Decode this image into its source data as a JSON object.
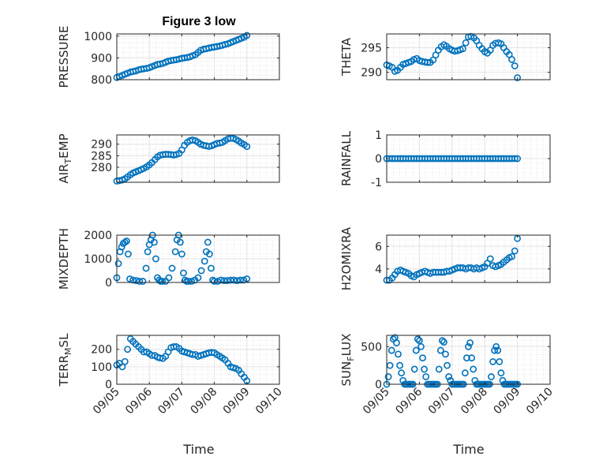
{
  "figure": {
    "title": "Figure 3 low",
    "xlabel": "Time",
    "marker_color": "#0072bd"
  },
  "chart_data": [
    {
      "type": "scatter",
      "name": "pressure",
      "ylabel": "PRESSURE",
      "xlim": [
        "09/05",
        "09/10"
      ],
      "ylim": [
        800,
        1010
      ],
      "yticks": [
        "800",
        "900",
        "1000"
      ],
      "xticks": [
        "09/05",
        "09/06",
        "09/07",
        "09/08",
        "09/09",
        "09/10"
      ],
      "xtick_labels_shown": false,
      "grid": true,
      "x_day": [
        0.0,
        0.08,
        0.17,
        0.25,
        0.33,
        0.42,
        0.5,
        0.58,
        0.67,
        0.75,
        0.83,
        0.92,
        1.0,
        1.08,
        1.17,
        1.25,
        1.33,
        1.42,
        1.5,
        1.58,
        1.67,
        1.75,
        1.83,
        1.92,
        2.0,
        2.08,
        2.17,
        2.25,
        2.33,
        2.42,
        2.5,
        2.58,
        2.67,
        2.75,
        2.83,
        2.92,
        3.0,
        3.08,
        3.17,
        3.25,
        3.33,
        3.42,
        3.5,
        3.58,
        3.67,
        3.75,
        3.83,
        3.92,
        4.0
      ],
      "y": [
        810,
        815,
        820,
        825,
        830,
        835,
        838,
        840,
        845,
        848,
        850,
        852,
        855,
        860,
        865,
        870,
        872,
        875,
        880,
        885,
        888,
        890,
        892,
        895,
        898,
        900,
        902,
        905,
        910,
        915,
        925,
        935,
        940,
        942,
        945,
        948,
        950,
        952,
        955,
        958,
        962,
        965,
        970,
        975,
        980,
        985,
        990,
        995,
        1003
      ]
    },
    {
      "type": "scatter",
      "name": "theta",
      "ylabel": "THETA",
      "xlim": [
        "09/05",
        "09/10"
      ],
      "ylim": [
        288.5,
        297.8
      ],
      "yticks": [
        "290",
        "295"
      ],
      "xticks": [
        "09/05",
        "09/06",
        "09/07",
        "09/08",
        "09/09",
        "09/10"
      ],
      "xtick_labels_shown": false,
      "grid": true,
      "x_day": [
        0.0,
        0.08,
        0.17,
        0.25,
        0.33,
        0.42,
        0.5,
        0.58,
        0.67,
        0.75,
        0.83,
        0.92,
        1.0,
        1.08,
        1.17,
        1.25,
        1.33,
        1.42,
        1.5,
        1.58,
        1.67,
        1.75,
        1.83,
        1.92,
        2.0,
        2.08,
        2.17,
        2.25,
        2.33,
        2.42,
        2.5,
        2.58,
        2.67,
        2.75,
        2.83,
        2.92,
        3.0,
        3.08,
        3.17,
        3.25,
        3.33,
        3.42,
        3.5,
        3.58,
        3.67,
        3.75,
        3.83,
        3.92,
        4.0
      ],
      "y": [
        291.5,
        291.3,
        291.0,
        290.2,
        290.4,
        291.0,
        291.6,
        291.8,
        292.0,
        292.2,
        292.6,
        292.8,
        292.4,
        292.2,
        292.1,
        292.0,
        292.0,
        292.5,
        293.5,
        294.5,
        295.2,
        295.6,
        295.3,
        294.8,
        294.5,
        294.3,
        294.4,
        294.6,
        294.8,
        296.0,
        297.2,
        297.3,
        297.0,
        296.4,
        295.5,
        294.8,
        294.2,
        293.9,
        294.5,
        295.5,
        295.9,
        296.0,
        295.8,
        295.0,
        294.2,
        293.6,
        292.6,
        291.3,
        288.9
      ]
    },
    {
      "type": "scatter",
      "name": "air_temp",
      "ylabel": "AIR",
      "ylabel_sub": "T",
      "ylabel_rest": "EMP",
      "xlim": [
        "09/05",
        "09/10"
      ],
      "ylim": [
        273.5,
        294
      ],
      "yticks": [
        "280",
        "285",
        "290"
      ],
      "xticks": [
        "09/05",
        "09/06",
        "09/07",
        "09/08",
        "09/09",
        "09/10"
      ],
      "xtick_labels_shown": false,
      "grid": true,
      "x_day": [
        0.0,
        0.08,
        0.17,
        0.25,
        0.33,
        0.42,
        0.5,
        0.58,
        0.67,
        0.75,
        0.83,
        0.92,
        1.0,
        1.08,
        1.17,
        1.25,
        1.33,
        1.42,
        1.5,
        1.58,
        1.67,
        1.75,
        1.83,
        1.92,
        2.0,
        2.08,
        2.17,
        2.25,
        2.33,
        2.42,
        2.5,
        2.58,
        2.67,
        2.75,
        2.83,
        2.92,
        3.0,
        3.08,
        3.17,
        3.25,
        3.33,
        3.42,
        3.5,
        3.58,
        3.67,
        3.75,
        3.83,
        3.92,
        4.0
      ],
      "y": [
        274.0,
        274.2,
        274.5,
        275.0,
        275.8,
        276.8,
        277.5,
        278.0,
        278.5,
        279.0,
        279.5,
        280.2,
        281.0,
        282.0,
        283.3,
        284.5,
        285.2,
        285.5,
        285.6,
        285.6,
        285.5,
        285.3,
        285.5,
        286.0,
        287.5,
        289.5,
        290.8,
        291.5,
        291.8,
        291.5,
        290.8,
        290.0,
        289.5,
        289.3,
        289.0,
        289.3,
        289.8,
        290.3,
        290.5,
        290.8,
        291.5,
        292.3,
        292.6,
        292.5,
        292.0,
        291.3,
        290.5,
        289.8,
        289.0
      ]
    },
    {
      "type": "scatter",
      "name": "rainfall",
      "ylabel": "RAINFALL",
      "xlim": [
        "09/05",
        "09/10"
      ],
      "ylim": [
        -1,
        1
      ],
      "yticks": [
        "-1",
        "0",
        "1"
      ],
      "xticks": [
        "09/05",
        "09/06",
        "09/07",
        "09/08",
        "09/09",
        "09/10"
      ],
      "xtick_labels_shown": false,
      "grid": true,
      "x_day": [
        0.0,
        0.08,
        0.17,
        0.25,
        0.33,
        0.42,
        0.5,
        0.58,
        0.67,
        0.75,
        0.83,
        0.92,
        1.0,
        1.08,
        1.17,
        1.25,
        1.33,
        1.42,
        1.5,
        1.58,
        1.67,
        1.75,
        1.83,
        1.92,
        2.0,
        2.08,
        2.17,
        2.25,
        2.33,
        2.42,
        2.5,
        2.58,
        2.67,
        2.75,
        2.83,
        2.92,
        3.0,
        3.08,
        3.17,
        3.25,
        3.33,
        3.42,
        3.5,
        3.58,
        3.67,
        3.75,
        3.83,
        3.92,
        4.0
      ],
      "y": [
        0,
        0,
        0,
        0,
        0,
        0,
        0,
        0,
        0,
        0,
        0,
        0,
        0,
        0,
        0,
        0,
        0,
        0,
        0,
        0,
        0,
        0,
        0,
        0,
        0,
        0,
        0,
        0,
        0,
        0,
        0,
        0,
        0,
        0,
        0,
        0,
        0,
        0,
        0,
        0,
        0,
        0,
        0,
        0,
        0,
        0,
        0,
        0,
        0
      ]
    },
    {
      "type": "scatter",
      "name": "mixdepth",
      "ylabel": "MIXDEPTH",
      "xlim": [
        "09/05",
        "09/10"
      ],
      "ylim": [
        0,
        2000
      ],
      "yticks": [
        "0",
        "1000",
        "2000"
      ],
      "xticks": [
        "09/05",
        "09/06",
        "09/07",
        "09/08",
        "09/09",
        "09/10"
      ],
      "xtick_labels_shown": false,
      "grid": true,
      "x_day": [
        0.0,
        0.05,
        0.1,
        0.15,
        0.2,
        0.25,
        0.3,
        0.35,
        0.4,
        0.5,
        0.6,
        0.7,
        0.8,
        0.9,
        0.95,
        1.0,
        1.05,
        1.1,
        1.15,
        1.2,
        1.25,
        1.3,
        1.35,
        1.4,
        1.5,
        1.6,
        1.7,
        1.8,
        1.85,
        1.9,
        1.95,
        2.0,
        2.05,
        2.1,
        2.15,
        2.2,
        2.3,
        2.4,
        2.5,
        2.6,
        2.7,
        2.75,
        2.8,
        2.85,
        2.9,
        2.95,
        3.0,
        3.1,
        3.2,
        3.3,
        3.4,
        3.5,
        3.6,
        3.7,
        3.8,
        3.9,
        4.0
      ],
      "y": [
        200,
        800,
        1300,
        1500,
        1650,
        1700,
        1750,
        1200,
        150,
        100,
        80,
        50,
        50,
        600,
        1300,
        1600,
        1800,
        2000,
        1700,
        1000,
        200,
        100,
        50,
        50,
        50,
        200,
        600,
        1300,
        1800,
        2000,
        1700,
        1200,
        400,
        100,
        50,
        50,
        50,
        100,
        200,
        500,
        900,
        1300,
        1700,
        1200,
        600,
        100,
        50,
        50,
        100,
        80,
        80,
        100,
        100,
        80,
        100,
        100,
        150
      ]
    },
    {
      "type": "scatter",
      "name": "h2omixra",
      "ylabel": "H2OMIXRA",
      "xlim": [
        "09/05",
        "09/10"
      ],
      "ylim": [
        2.8,
        7.0
      ],
      "yticks": [
        "4",
        "6"
      ],
      "xticks": [
        "09/05",
        "09/06",
        "09/07",
        "09/08",
        "09/09",
        "09/10"
      ],
      "xtick_labels_shown": false,
      "grid": true,
      "x_day": [
        0.0,
        0.08,
        0.17,
        0.25,
        0.33,
        0.42,
        0.5,
        0.58,
        0.67,
        0.75,
        0.83,
        0.92,
        1.0,
        1.08,
        1.17,
        1.25,
        1.33,
        1.42,
        1.5,
        1.58,
        1.67,
        1.75,
        1.83,
        1.92,
        2.0,
        2.08,
        2.17,
        2.25,
        2.33,
        2.42,
        2.5,
        2.58,
        2.67,
        2.75,
        2.83,
        2.92,
        3.0,
        3.08,
        3.17,
        3.25,
        3.33,
        3.42,
        3.5,
        3.58,
        3.67,
        3.75,
        3.83,
        3.92,
        4.0
      ],
      "y": [
        3.0,
        3.0,
        3.2,
        3.5,
        3.8,
        3.9,
        3.8,
        3.7,
        3.6,
        3.4,
        3.3,
        3.5,
        3.6,
        3.7,
        3.8,
        3.7,
        3.6,
        3.7,
        3.7,
        3.7,
        3.7,
        3.7,
        3.8,
        3.8,
        3.9,
        4.0,
        4.1,
        4.1,
        4.1,
        4.0,
        4.1,
        4.1,
        4.0,
        4.1,
        4.0,
        4.1,
        4.2,
        4.5,
        4.9,
        4.3,
        4.2,
        4.3,
        4.4,
        4.6,
        4.8,
        5.0,
        5.1,
        5.6,
        6.7
      ]
    },
    {
      "type": "scatter",
      "name": "terr_msl",
      "ylabel": "TERR",
      "ylabel_sub": "M",
      "ylabel_rest": "SL",
      "xlim": [
        "09/05",
        "09/10"
      ],
      "ylim": [
        0,
        280
      ],
      "yticks": [
        "0",
        "100",
        "200"
      ],
      "xticks": [
        "09/05",
        "09/06",
        "09/07",
        "09/08",
        "09/09",
        "09/10"
      ],
      "xtick_labels_shown": true,
      "grid": true,
      "x_day": [
        0.0,
        0.08,
        0.17,
        0.25,
        0.33,
        0.42,
        0.5,
        0.58,
        0.67,
        0.75,
        0.83,
        0.92,
        1.0,
        1.08,
        1.17,
        1.25,
        1.33,
        1.42,
        1.5,
        1.58,
        1.67,
        1.75,
        1.83,
        1.92,
        2.0,
        2.08,
        2.17,
        2.25,
        2.33,
        2.42,
        2.5,
        2.58,
        2.67,
        2.75,
        2.83,
        2.92,
        3.0,
        3.08,
        3.17,
        3.25,
        3.33,
        3.42,
        3.5,
        3.58,
        3.67,
        3.75,
        3.83,
        3.92,
        4.0
      ],
      "y": [
        110,
        120,
        100,
        130,
        200,
        260,
        245,
        230,
        215,
        200,
        185,
        185,
        175,
        165,
        165,
        155,
        150,
        148,
        160,
        185,
        210,
        215,
        215,
        205,
        190,
        185,
        180,
        175,
        170,
        170,
        160,
        165,
        170,
        175,
        180,
        182,
        180,
        170,
        160,
        150,
        140,
        120,
        100,
        95,
        90,
        80,
        60,
        40,
        20
      ]
    },
    {
      "type": "scatter",
      "name": "sun_flux",
      "ylabel": "SUN",
      "ylabel_sub": "F",
      "ylabel_rest": "LUX",
      "xlim": [
        "09/05",
        "09/10"
      ],
      "ylim": [
        0,
        650
      ],
      "yticks": [
        "0",
        "500"
      ],
      "xticks": [
        "09/05",
        "09/06",
        "09/07",
        "09/08",
        "09/09",
        "09/10"
      ],
      "xtick_labels_shown": true,
      "grid": true,
      "x_day": [
        0.0,
        0.05,
        0.1,
        0.15,
        0.2,
        0.25,
        0.3,
        0.35,
        0.4,
        0.45,
        0.5,
        0.55,
        0.6,
        0.65,
        0.7,
        0.75,
        0.8,
        0.85,
        0.9,
        0.95,
        1.0,
        1.05,
        1.1,
        1.15,
        1.2,
        1.25,
        1.3,
        1.35,
        1.4,
        1.45,
        1.5,
        1.55,
        1.6,
        1.65,
        1.7,
        1.75,
        1.8,
        1.85,
        1.9,
        1.95,
        2.0,
        2.05,
        2.1,
        2.15,
        2.2,
        2.25,
        2.3,
        2.35,
        2.4,
        2.45,
        2.5,
        2.55,
        2.6,
        2.65,
        2.7,
        2.75,
        2.8,
        2.85,
        2.9,
        2.95,
        3.0,
        3.05,
        3.1,
        3.15,
        3.2,
        3.25,
        3.3,
        3.35,
        3.4,
        3.45,
        3.5,
        3.55,
        3.6,
        3.65,
        3.7,
        3.75,
        3.8,
        3.85,
        3.9,
        3.95,
        4.0
      ],
      "y": [
        0,
        100,
        250,
        450,
        600,
        620,
        550,
        400,
        250,
        150,
        50,
        0,
        0,
        0,
        0,
        0,
        0,
        200,
        450,
        600,
        580,
        500,
        350,
        200,
        100,
        0,
        0,
        0,
        0,
        0,
        0,
        0,
        200,
        450,
        580,
        560,
        400,
        250,
        100,
        50,
        0,
        0,
        0,
        0,
        0,
        0,
        0,
        0,
        150,
        350,
        500,
        550,
        350,
        200,
        50,
        0,
        0,
        0,
        0,
        0,
        0,
        0,
        0,
        0,
        100,
        300,
        450,
        500,
        450,
        300,
        150,
        50,
        0,
        0,
        0,
        0,
        0,
        0,
        0,
        0,
        0
      ]
    }
  ]
}
